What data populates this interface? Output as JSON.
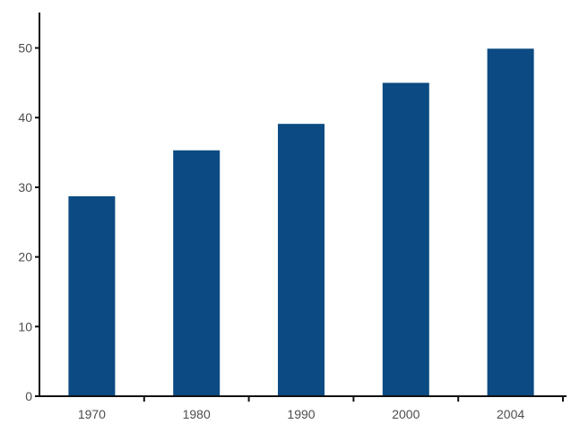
{
  "chart_data": {
    "type": "bar",
    "categories": [
      "1970",
      "1980",
      "1990",
      "2000",
      "2004"
    ],
    "values": [
      28.7,
      35.3,
      39.1,
      45.0,
      49.9
    ],
    "title": "",
    "xlabel": "",
    "ylabel": "",
    "ylim": [
      0,
      55
    ],
    "yticks": [
      0,
      10,
      20,
      30,
      40,
      50
    ],
    "grid": false,
    "bar_color": "#0b4a82",
    "axis_color": "#111111",
    "tick_label_color": "#4d4d4d"
  }
}
